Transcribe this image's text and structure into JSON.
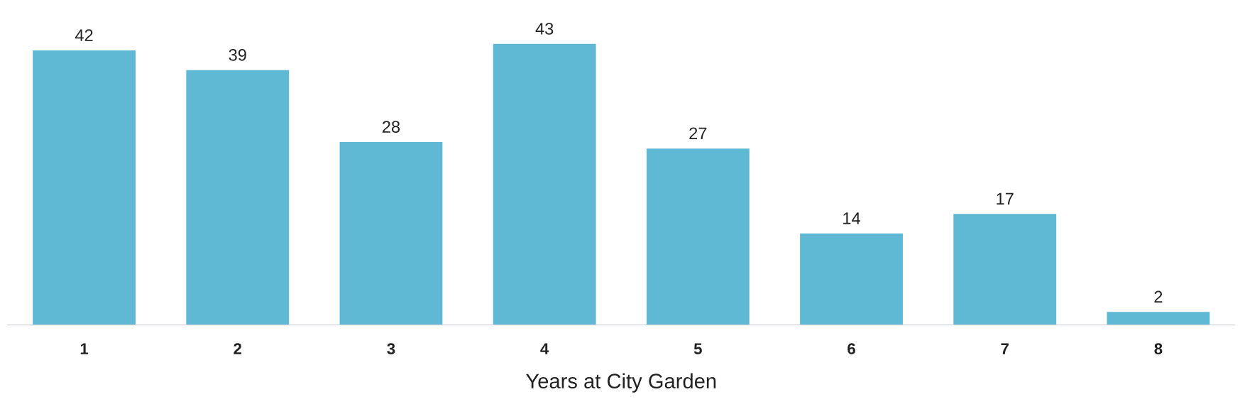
{
  "chart_data": {
    "type": "bar",
    "xlabel": "Years at City Garden",
    "categories": [
      "1",
      "2",
      "3",
      "4",
      "5",
      "6",
      "7",
      "8"
    ],
    "values": [
      42,
      39,
      28,
      43,
      27,
      14,
      17,
      2
    ],
    "color": "#5fb8d4",
    "tick_labels": "x",
    "data_labels": true,
    "grid": false,
    "legend": false
  }
}
